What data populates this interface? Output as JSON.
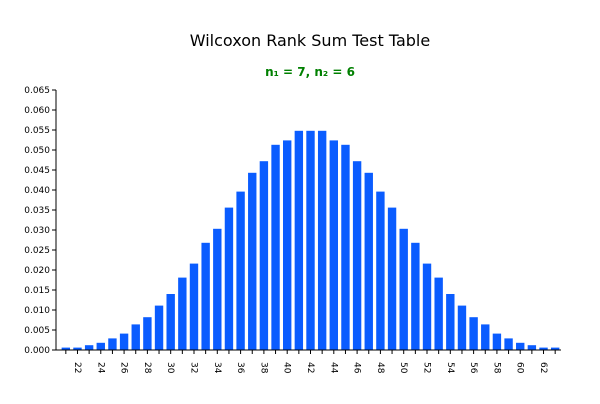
{
  "chart_data": {
    "type": "bar",
    "title": "Wilcoxon Rank Sum Test Table",
    "subtitle": "n₁ = 7, n₂ = 6",
    "xlabel": "",
    "ylabel": "",
    "ylim": [
      0,
      0.065
    ],
    "y_ticks": [
      "0.000",
      "0.005",
      "0.010",
      "0.015",
      "0.020",
      "0.025",
      "0.030",
      "0.035",
      "0.040",
      "0.045",
      "0.050",
      "0.055",
      "0.060",
      "0.065"
    ],
    "x_tick_labels": [
      "22",
      "24",
      "26",
      "28",
      "30",
      "32",
      "34",
      "36",
      "38",
      "40",
      "42",
      "44",
      "46",
      "48",
      "50",
      "52",
      "54",
      "56",
      "58",
      "60",
      "62"
    ],
    "categories": [
      21,
      22,
      23,
      24,
      25,
      26,
      27,
      28,
      29,
      30,
      31,
      32,
      33,
      34,
      35,
      36,
      37,
      38,
      39,
      40,
      41,
      42,
      43,
      44,
      45,
      46,
      47,
      48,
      49,
      50,
      51,
      52,
      53,
      54,
      55,
      56,
      57,
      58,
      59,
      60,
      61,
      62,
      63
    ],
    "values": [
      0.0006,
      0.0006,
      0.0012,
      0.0018,
      0.0029,
      0.0041,
      0.0064,
      0.0082,
      0.0111,
      0.014,
      0.0181,
      0.0216,
      0.0268,
      0.0303,
      0.0356,
      0.0396,
      0.0443,
      0.0472,
      0.0513,
      0.0524,
      0.0548,
      0.0548,
      0.0548,
      0.0524,
      0.0513,
      0.0472,
      0.0443,
      0.0396,
      0.0356,
      0.0303,
      0.0268,
      0.0216,
      0.0181,
      0.014,
      0.0111,
      0.0082,
      0.0064,
      0.0041,
      0.0029,
      0.0018,
      0.0012,
      0.0006,
      0.0006
    ],
    "grid": false,
    "legend": "none",
    "colors": {
      "bar": "#0a5cff",
      "subtitle": "#008000"
    }
  }
}
